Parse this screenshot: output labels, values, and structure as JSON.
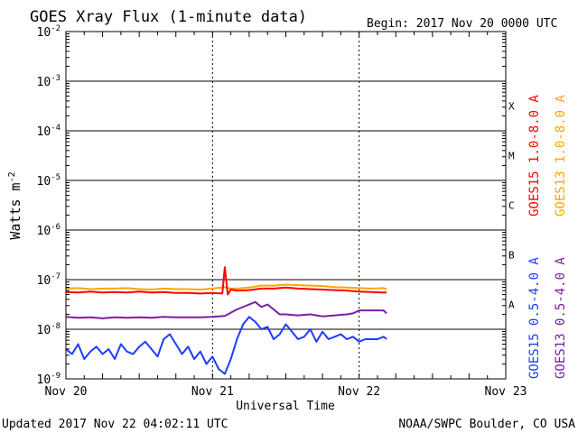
{
  "chart_data": {
    "type": "line",
    "title": "GOES Xray Flux (1-minute data)",
    "begin_label": "Begin:  2017 Nov 20 0000 UTC",
    "xlabel": "Universal Time",
    "ylabel": "Watts m",
    "ylabel_exp": "-2",
    "yscale": "log",
    "ylim": [
      1e-09,
      0.01
    ],
    "y_ticks": [
      {
        "base": "10",
        "exp": "-2"
      },
      {
        "base": "10",
        "exp": "-3"
      },
      {
        "base": "10",
        "exp": "-4"
      },
      {
        "base": "10",
        "exp": "-5"
      },
      {
        "base": "10",
        "exp": "-6"
      },
      {
        "base": "10",
        "exp": "-7"
      },
      {
        "base": "10",
        "exp": "-8"
      },
      {
        "base": "10",
        "exp": "-9"
      }
    ],
    "xlim_hours": [
      0,
      72
    ],
    "x_ticks": [
      {
        "label": "Nov 20",
        "hour": 0
      },
      {
        "label": "Nov 21",
        "hour": 24
      },
      {
        "label": "Nov 22",
        "hour": 48
      },
      {
        "label": "Nov 23",
        "hour": 72
      }
    ],
    "flare_classes": [
      {
        "label": "X",
        "exp": -4
      },
      {
        "label": "M",
        "exp": -5
      },
      {
        "label": "C",
        "exp": -6
      },
      {
        "label": "B",
        "exp": -7
      },
      {
        "label": "A",
        "exp": -8
      }
    ],
    "series": [
      {
        "name": "GOES13 0.5-4.0 A",
        "color": "#7b1fa2",
        "hours": [
          0,
          2,
          4,
          6,
          8,
          10,
          12,
          14,
          16,
          18,
          20,
          22,
          24,
          26,
          28,
          30,
          31,
          32,
          33,
          34,
          35,
          36,
          38,
          40,
          42,
          44,
          46,
          47,
          48,
          50,
          52,
          52.5
        ],
        "log10": [
          -7.75,
          -7.77,
          -7.76,
          -7.78,
          -7.76,
          -7.77,
          -7.76,
          -7.77,
          -7.75,
          -7.76,
          -7.76,
          -7.76,
          -7.75,
          -7.73,
          -7.6,
          -7.5,
          -7.45,
          -7.55,
          -7.5,
          -7.6,
          -7.7,
          -7.7,
          -7.72,
          -7.7,
          -7.74,
          -7.72,
          -7.7,
          -7.68,
          -7.62,
          -7.62,
          -7.62,
          -7.68
        ]
      },
      {
        "name": "GOES15 0.5-4.0 A",
        "color": "#1e3cff",
        "hours": [
          0,
          1,
          2,
          3,
          4,
          5,
          6,
          7,
          8,
          9,
          10,
          11,
          12,
          13,
          14,
          15,
          16,
          17,
          18,
          19,
          20,
          21,
          22,
          23,
          24,
          25,
          26,
          27,
          28,
          29,
          30,
          31,
          32,
          33,
          34,
          35,
          36,
          37,
          38,
          39,
          40,
          41,
          42,
          43,
          44,
          45,
          46,
          47,
          48,
          49,
          50,
          51,
          52,
          52.5
        ],
        "log10": [
          -8.4,
          -8.5,
          -8.3,
          -8.6,
          -8.45,
          -8.35,
          -8.5,
          -8.4,
          -8.6,
          -8.3,
          -8.45,
          -8.5,
          -8.35,
          -8.25,
          -8.4,
          -8.55,
          -8.2,
          -8.1,
          -8.3,
          -8.5,
          -8.35,
          -8.6,
          -8.45,
          -8.7,
          -8.55,
          -8.8,
          -8.9,
          -8.6,
          -8.2,
          -7.9,
          -7.75,
          -7.85,
          -8.0,
          -7.95,
          -8.2,
          -8.1,
          -7.9,
          -8.05,
          -8.2,
          -8.15,
          -8.0,
          -8.25,
          -8.05,
          -8.2,
          -8.15,
          -8.1,
          -8.2,
          -8.15,
          -8.25,
          -8.2,
          -8.2,
          -8.2,
          -8.15,
          -8.2
        ]
      },
      {
        "name": "GOES13 1.0-8.0 A",
        "color": "#ffa500",
        "hours": [
          0,
          2,
          4,
          6,
          8,
          10,
          12,
          14,
          16,
          18,
          20,
          22,
          24,
          26,
          27,
          28,
          30,
          32,
          34,
          36,
          38,
          40,
          42,
          44,
          46,
          48,
          50,
          52,
          52.5
        ],
        "log10": [
          -7.18,
          -7.17,
          -7.19,
          -7.18,
          -7.18,
          -7.17,
          -7.19,
          -7.2,
          -7.18,
          -7.19,
          -7.19,
          -7.2,
          -7.18,
          -7.15,
          -7.18,
          -7.18,
          -7.16,
          -7.12,
          -7.12,
          -7.1,
          -7.11,
          -7.12,
          -7.13,
          -7.15,
          -7.16,
          -7.17,
          -7.18,
          -7.17,
          -7.19
        ]
      },
      {
        "name": "GOES15 1.0-8.0 A",
        "color": "#ff0000",
        "hours": [
          0,
          2,
          4,
          6,
          8,
          10,
          12,
          14,
          16,
          18,
          20,
          22,
          24,
          25.6,
          26.0,
          26.5,
          27,
          28,
          30,
          32,
          34,
          36,
          38,
          40,
          42,
          44,
          46,
          48,
          50,
          52,
          52.5
        ],
        "log10": [
          -7.25,
          -7.26,
          -7.24,
          -7.26,
          -7.25,
          -7.26,
          -7.24,
          -7.26,
          -7.25,
          -7.27,
          -7.27,
          -7.28,
          -7.27,
          -7.28,
          -6.75,
          -7.3,
          -7.2,
          -7.22,
          -7.21,
          -7.18,
          -7.18,
          -7.16,
          -7.18,
          -7.19,
          -7.2,
          -7.21,
          -7.22,
          -7.24,
          -7.25,
          -7.26,
          -7.26
        ]
      }
    ],
    "legend_left": [
      {
        "text": "GOES15 1.0-8.0 A",
        "color": "#ff0000"
      },
      {
        "text": "GOES15 0.5-4.0 A",
        "color": "#1e3cff"
      }
    ],
    "legend_right": [
      {
        "text": "GOES13 1.0-8.0 A",
        "color": "#ffa500"
      },
      {
        "text": "GOES13 0.5-4.0 A",
        "color": "#7b1fa2"
      }
    ],
    "legend_placement": "right"
  },
  "footer": {
    "updated": "Updated 2017 Nov 22 04:02:11 UTC",
    "source": "NOAA/SWPC Boulder, CO USA"
  }
}
